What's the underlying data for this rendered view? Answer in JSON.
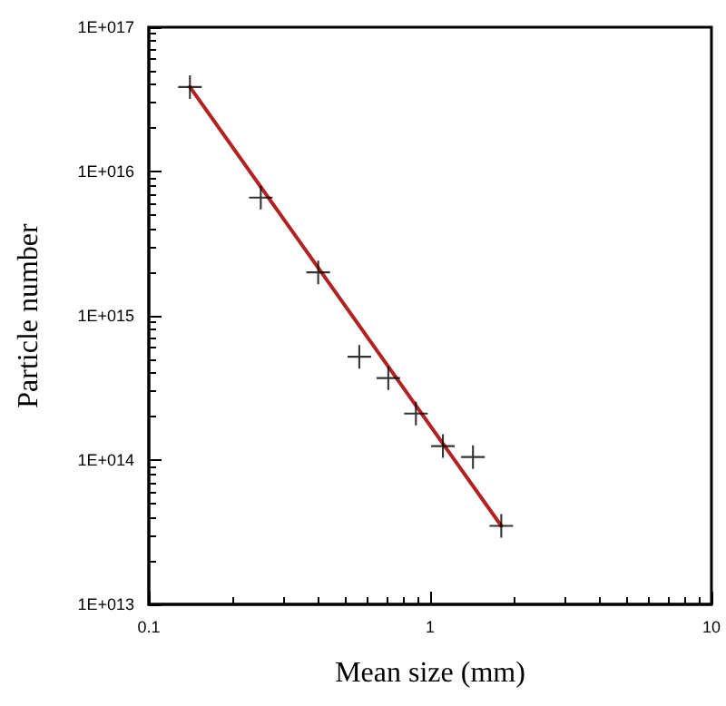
{
  "chart_data": {
    "type": "scatter",
    "xlabel": "Mean size (mm)",
    "ylabel": "Particle number",
    "log": "xy",
    "grid": false,
    "marker": "cross",
    "xlim": [
      0.1,
      10
    ],
    "xticks": [
      0.1,
      1,
      10
    ],
    "ylim": [
      10000000000000.0,
      1e+17
    ],
    "yticks": [
      {
        "value": 10000000000000.0,
        "label": "1E+013"
      },
      {
        "value": 100000000000000.0,
        "label": "1E+014"
      },
      {
        "value": 1000000000000000.0,
        "label": "1E+015"
      },
      {
        "value": 1e+16,
        "label": "1E+016"
      },
      {
        "value": 1e+17,
        "label": "1E+017"
      }
    ],
    "series": [
      {
        "color": "#000000",
        "x": [
          0.14,
          0.25,
          0.4,
          0.56,
          0.71,
          0.89,
          1.11,
          1.42,
          1.79
        ],
        "values": [
          3.85e+16,
          6600000000000000.0,
          2000000000000000.0,
          520000000000000.0,
          370000000000000.0,
          210000000000000.0,
          125000000000000.0,
          105000000000000.0,
          35000000000000.0
        ]
      },
      {
        "type": "line",
        "color": "#b22222",
        "line_style": "solid",
        "marker": "none",
        "x": [
          0.14,
          1.79
        ],
        "values": [
          3.85e+16,
          35000000000000.0
        ]
      }
    ]
  }
}
